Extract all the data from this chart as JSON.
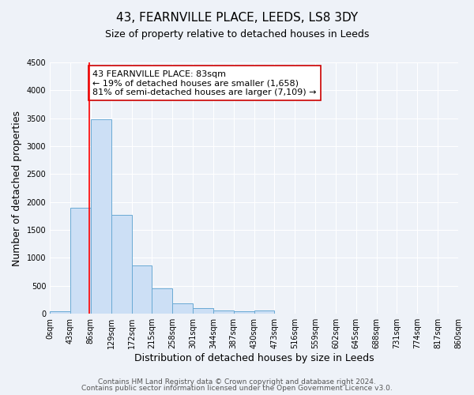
{
  "title": "43, FEARNVILLE PLACE, LEEDS, LS8 3DY",
  "subtitle": "Size of property relative to detached houses in Leeds",
  "xlabel": "Distribution of detached houses by size in Leeds",
  "ylabel": "Number of detached properties",
  "bin_edges": [
    0,
    43,
    86,
    129,
    172,
    215,
    258,
    301,
    344,
    387,
    430,
    473,
    516,
    559,
    602,
    645,
    688,
    731,
    774,
    817,
    860
  ],
  "counts": [
    50,
    1900,
    3480,
    1775,
    860,
    455,
    185,
    100,
    55,
    40,
    55,
    0,
    0,
    0,
    0,
    0,
    0,
    0,
    0,
    0
  ],
  "bar_color": "#ccdff5",
  "bar_edge_color": "#6aaad4",
  "property_line_x": 83,
  "property_line_color": "red",
  "annotation_line1": "43 FEARNVILLE PLACE: 83sqm",
  "annotation_line2": "← 19% of detached houses are smaller (1,658)",
  "annotation_line3": "81% of semi-detached houses are larger (7,109) →",
  "annotation_box_color": "white",
  "annotation_box_edge_color": "#cc0000",
  "xlim": [
    0,
    860
  ],
  "ylim": [
    0,
    4500
  ],
  "yticks": [
    0,
    500,
    1000,
    1500,
    2000,
    2500,
    3000,
    3500,
    4000,
    4500
  ],
  "xtick_labels": [
    "0sqm",
    "43sqm",
    "86sqm",
    "129sqm",
    "172sqm",
    "215sqm",
    "258sqm",
    "301sqm",
    "344sqm",
    "387sqm",
    "430sqm",
    "473sqm",
    "516sqm",
    "559sqm",
    "602sqm",
    "645sqm",
    "688sqm",
    "731sqm",
    "774sqm",
    "817sqm",
    "860sqm"
  ],
  "footer_line1": "Contains HM Land Registry data © Crown copyright and database right 2024.",
  "footer_line2": "Contains public sector information licensed under the Open Government Licence v3.0.",
  "background_color": "#eef2f8",
  "grid_color": "white",
  "title_fontsize": 11,
  "subtitle_fontsize": 9,
  "axis_label_fontsize": 9,
  "tick_fontsize": 7,
  "annotation_fontsize": 8,
  "footer_fontsize": 6.5
}
